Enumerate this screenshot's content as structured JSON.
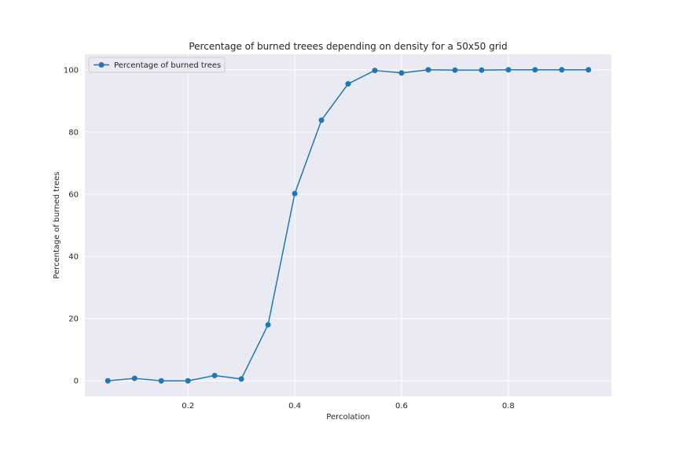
{
  "chart_data": {
    "type": "line",
    "title": "Percentage of burned treees depending on density for a 50x50 grid",
    "xlabel": "Percolation",
    "ylabel": "Percentage of burned trees",
    "xlim": [
      0.007,
      0.993
    ],
    "ylim": [
      -5,
      105
    ],
    "xticks": [
      0.2,
      0.4,
      0.6,
      0.8
    ],
    "xtick_labels": [
      "0.2",
      "0.4",
      "0.6",
      "0.8"
    ],
    "yticks": [
      0,
      20,
      40,
      60,
      80,
      100
    ],
    "ytick_labels": [
      "0",
      "20",
      "40",
      "60",
      "80",
      "100"
    ],
    "grid": true,
    "legend_position": "top-left",
    "series": [
      {
        "name": "Percentage of burned trees",
        "color": "#1f77b4",
        "marker": "circle",
        "x": [
          0.05,
          0.1,
          0.15,
          0.2,
          0.25,
          0.3,
          0.35,
          0.4,
          0.45,
          0.5,
          0.55,
          0.6,
          0.65,
          0.7,
          0.75,
          0.8,
          0.85,
          0.9,
          0.95
        ],
        "y": [
          0.0,
          0.8,
          0.0,
          0.0,
          1.7,
          0.6,
          18.0,
          60.2,
          83.8,
          95.5,
          99.8,
          99.0,
          100.0,
          99.9,
          99.9,
          100.0,
          100.0,
          100.0,
          100.0
        ]
      }
    ]
  }
}
